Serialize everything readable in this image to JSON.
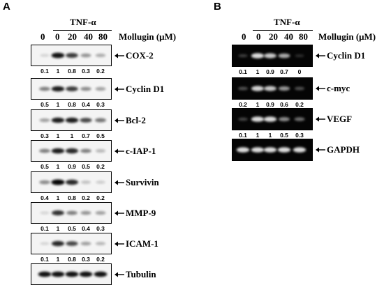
{
  "panels": {
    "A": {
      "label": "A",
      "treatment": "TNF-α",
      "dose_header": "Mollugin (μM)",
      "lanes": [
        "0",
        "0",
        "20",
        "40",
        "80"
      ],
      "blots": [
        {
          "marker": "COX-2",
          "values": [
            "0.1",
            "1",
            "0.8",
            "0.3",
            "0.2"
          ],
          "intensity": [
            0.05,
            0.95,
            0.75,
            0.35,
            0.25
          ]
        },
        {
          "marker": "Cyclin D1",
          "values": [
            "0.5",
            "1",
            "0.8",
            "0.4",
            "0.3"
          ],
          "intensity": [
            0.45,
            0.9,
            0.75,
            0.4,
            0.3
          ]
        },
        {
          "marker": "Bcl-2",
          "values": [
            "0.3",
            "1",
            "1",
            "0.7",
            "0.5"
          ],
          "intensity": [
            0.3,
            0.9,
            0.9,
            0.7,
            0.5
          ]
        },
        {
          "marker": "c-IAP-1",
          "values": [
            "0.5",
            "1",
            "0.9",
            "0.5",
            "0.2"
          ],
          "intensity": [
            0.45,
            0.9,
            0.85,
            0.45,
            0.2
          ]
        },
        {
          "marker": "Survivin",
          "values": [
            "0.4",
            "1",
            "0.8",
            "0.2",
            "0.2"
          ],
          "intensity": [
            0.4,
            1.0,
            0.85,
            0.15,
            0.1
          ]
        },
        {
          "marker": "MMP-9",
          "values": [
            "0.1",
            "1",
            "0.5",
            "0.4",
            "0.3"
          ],
          "intensity": [
            0.05,
            0.8,
            0.45,
            0.35,
            0.3
          ]
        },
        {
          "marker": "ICAM-1",
          "values": [
            "0.1",
            "1",
            "0.8",
            "0.3",
            "0.2"
          ],
          "intensity": [
            0.05,
            0.85,
            0.7,
            0.3,
            0.2
          ]
        },
        {
          "marker": "Tubulin",
          "values": [],
          "intensity": [
            0.95,
            0.95,
            0.95,
            0.95,
            0.95
          ]
        }
      ]
    },
    "B": {
      "label": "B",
      "treatment": "TNF-α",
      "dose_header": "Mollugin (μM)",
      "lanes": [
        "0",
        "0",
        "20",
        "40",
        "80"
      ],
      "gels": [
        {
          "marker": "Cyclin D1",
          "values": [
            "0.1",
            "1",
            "0.9",
            "0.7",
            "0"
          ],
          "intensity": [
            0.1,
            0.9,
            0.8,
            0.65,
            0.02
          ]
        },
        {
          "marker": "c-myc",
          "values": [
            "0.2",
            "1",
            "0.9",
            "0.6",
            "0.2"
          ],
          "intensity": [
            0.2,
            0.85,
            0.8,
            0.55,
            0.2
          ]
        },
        {
          "marker": "VEGF",
          "values": [
            "0.1",
            "1",
            "1",
            "0.5",
            "0.3"
          ],
          "intensity": [
            0.15,
            0.9,
            0.9,
            0.5,
            0.35
          ]
        },
        {
          "marker": "GAPDH",
          "values": [],
          "intensity": [
            0.9,
            0.9,
            0.9,
            0.9,
            0.9
          ]
        }
      ]
    }
  }
}
